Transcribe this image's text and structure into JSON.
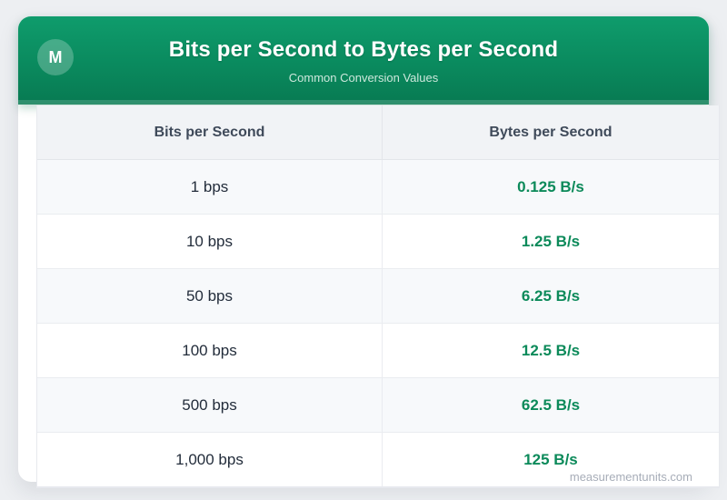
{
  "header": {
    "logo_letter": "M",
    "title": "Bits per Second to Bytes per Second",
    "subtitle": "Common Conversion Values"
  },
  "table": {
    "columns": {
      "bits": "Bits per Second",
      "bytes": "Bytes per Second"
    },
    "rows": [
      {
        "bits": "1 bps",
        "bytes": "0.125 B/s"
      },
      {
        "bits": "10 bps",
        "bytes": "1.25 B/s"
      },
      {
        "bits": "50 bps",
        "bytes": "6.25 B/s"
      },
      {
        "bits": "100 bps",
        "bytes": "12.5 B/s"
      },
      {
        "bits": "500 bps",
        "bytes": "62.5 B/s"
      },
      {
        "bits": "1,000 bps",
        "bytes": "125 B/s"
      }
    ]
  },
  "colors": {
    "header_gradient_top": "#0f9c6c",
    "header_gradient_bottom": "#087a52",
    "value_green": "#0c8a5a",
    "page_background": "#edeff2"
  },
  "watermark": "measurementunits.com"
}
